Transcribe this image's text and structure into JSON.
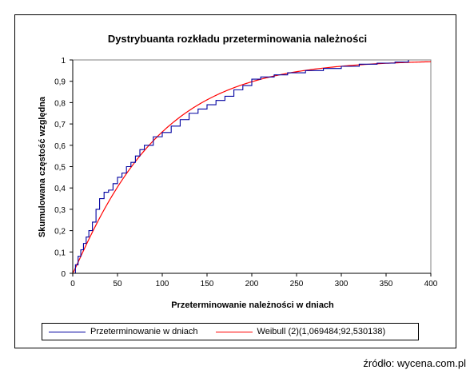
{
  "chart_data": {
    "type": "line",
    "title": "Dystrybuanta  rozkładu przeterminowania należności",
    "xlabel": "Przeterminowanie należności  w dniach",
    "ylabel": "Skumulowana  częstość względna",
    "xlim": [
      0,
      400
    ],
    "ylim": [
      0,
      1
    ],
    "x_ticks": [
      "0",
      "50",
      "100",
      "150",
      "200",
      "250",
      "300",
      "350",
      "400"
    ],
    "y_ticks": [
      "0",
      "0,1",
      "0,2",
      "0,3",
      "0,4",
      "0,5",
      "0,6",
      "0,7",
      "0,8",
      "0,9",
      "1"
    ],
    "grid": false,
    "legend_position": "bottom",
    "series": [
      {
        "name": "Przeterminowanie w dniach",
        "color": "#0000a0",
        "kind": "empirical-step",
        "x": [
          0,
          3,
          6,
          9,
          12,
          15,
          18,
          22,
          26,
          30,
          35,
          40,
          45,
          50,
          55,
          60,
          65,
          70,
          75,
          80,
          90,
          100,
          110,
          120,
          130,
          140,
          150,
          160,
          170,
          180,
          190,
          200,
          210,
          225,
          240,
          260,
          280,
          300,
          320,
          340,
          360,
          375
        ],
        "y": [
          0,
          0.04,
          0.08,
          0.11,
          0.14,
          0.17,
          0.2,
          0.24,
          0.3,
          0.35,
          0.38,
          0.39,
          0.42,
          0.45,
          0.47,
          0.5,
          0.52,
          0.55,
          0.58,
          0.6,
          0.64,
          0.66,
          0.69,
          0.72,
          0.75,
          0.77,
          0.79,
          0.81,
          0.83,
          0.86,
          0.88,
          0.91,
          0.92,
          0.93,
          0.94,
          0.95,
          0.96,
          0.97,
          0.98,
          0.985,
          0.99,
          1
        ]
      },
      {
        "name": "Weibull (2)(1,069484;92,530138)",
        "color": "#ff0000",
        "kind": "weibull-cdf",
        "shape": 1.069484,
        "scale": 92.530138
      }
    ]
  },
  "source": "źródło: wycena.com.pl"
}
